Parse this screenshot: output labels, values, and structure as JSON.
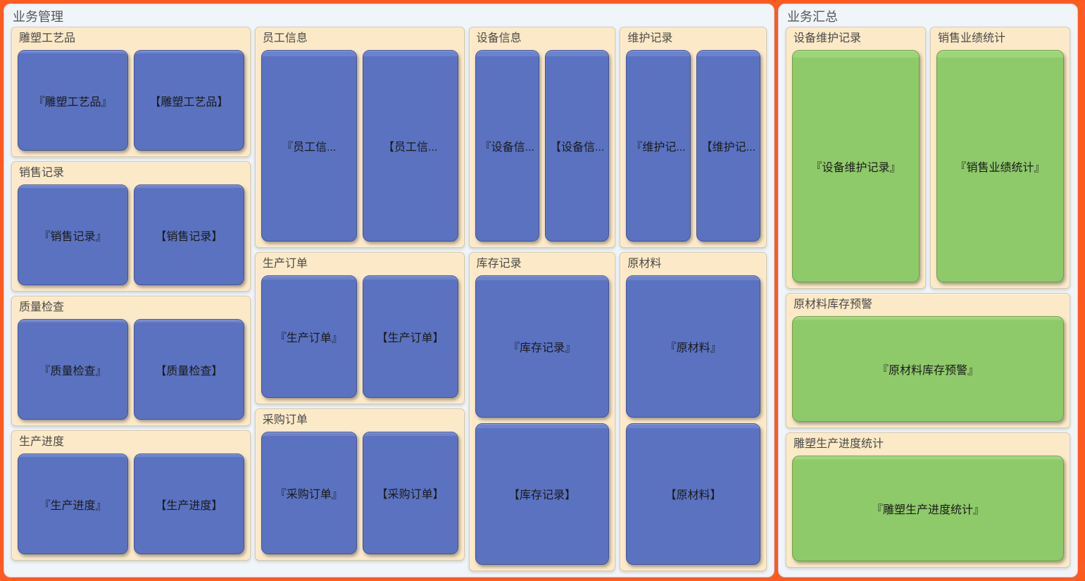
{
  "colors": {
    "frame": "#ff5a1f",
    "panel_bg": "#f0f5fa",
    "group_bg": "#fce9c7",
    "card_blue": "#5a72c0",
    "card_green": "#8ec96a"
  },
  "left_panel": {
    "title": "业务管理",
    "col1": [
      {
        "title": "雕塑工艺品",
        "cards": [
          "『雕塑工艺品』",
          "【雕塑工艺品】"
        ]
      },
      {
        "title": "销售记录",
        "cards": [
          "『销售记录』",
          "【销售记录】"
        ]
      },
      {
        "title": "质量检查",
        "cards": [
          "『质量检查』",
          "【质量检查】"
        ]
      },
      {
        "title": "生产进度",
        "cards": [
          "『生产进度』",
          "【生产进度】"
        ]
      }
    ],
    "col2": [
      {
        "title": "员工信息",
        "cards": [
          "『员工信...",
          "【员工信..."
        ],
        "tall": true
      },
      {
        "title": "生产订单",
        "cards": [
          "『生产订单』",
          "【生产订单】"
        ],
        "tall": false
      },
      {
        "title": "采购订单",
        "cards": [
          "『采购订单』",
          "【采购订单】"
        ],
        "tall": false
      }
    ],
    "col3": [
      {
        "title": "设备信息",
        "cards": [
          "『设备信...",
          "【设备信..."
        ],
        "tall": true
      },
      {
        "title": "库存记录",
        "cards": [
          "『库存记录』",
          "【库存记录】"
        ],
        "tall": false,
        "single": true
      }
    ],
    "col4": [
      {
        "title": "维护记录",
        "cards": [
          "『维护记...",
          "【维护记..."
        ],
        "tall": true
      },
      {
        "title": "原材料",
        "cards": [
          "『原材料』",
          "【原材料】"
        ],
        "tall": false,
        "single": true
      }
    ]
  },
  "right_panel": {
    "title": "业务汇总",
    "row1": [
      {
        "title": "设备维护记录",
        "card": "『设备维护记录』"
      },
      {
        "title": "销售业绩统计",
        "card": "『销售业绩统计』"
      }
    ],
    "row2": {
      "title": "原材料库存预警",
      "card": "『原材料库存预警』"
    },
    "row3": {
      "title": "雕塑生产进度统计",
      "card": "『雕塑生产进度统计』"
    }
  }
}
